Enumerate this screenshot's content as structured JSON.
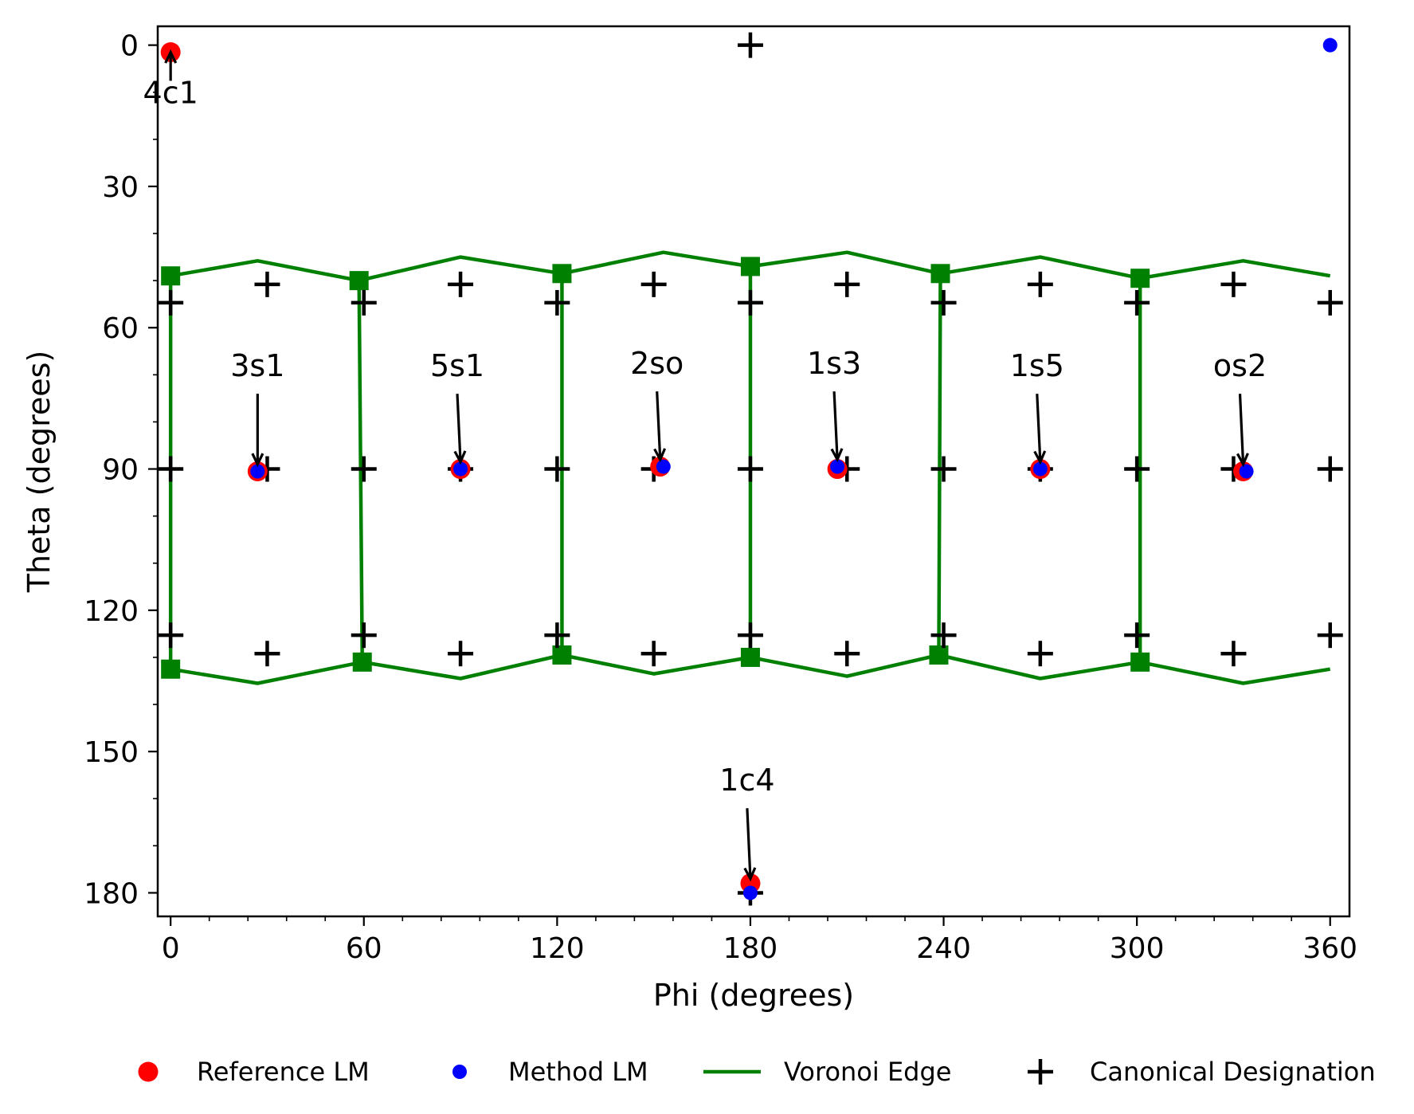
{
  "chart_data": {
    "type": "scatter",
    "xlabel": "Phi (degrees)",
    "ylabel": "Theta (degrees)",
    "xlim": [
      -4,
      366
    ],
    "ylim": [
      185,
      -4
    ],
    "y_inverted": true,
    "xticks": [
      0,
      60,
      120,
      180,
      240,
      300,
      360
    ],
    "yticks": [
      0,
      30,
      60,
      90,
      120,
      150,
      180
    ],
    "grid": false,
    "legend_placement": "bottom",
    "colors": {
      "reference": "#ff0000",
      "method": "#0000ff",
      "voronoi": "#008000",
      "canonical": "#000000"
    },
    "legend": [
      {
        "key": "reference",
        "label": "Reference LM"
      },
      {
        "key": "method",
        "label": "Method LM"
      },
      {
        "key": "voronoi",
        "label": "Voronoi Edge"
      },
      {
        "key": "canonical",
        "label": "Canonical Designation"
      }
    ],
    "series": [
      {
        "name": "Reference LM",
        "points": [
          [
            0,
            1.5
          ],
          [
            27,
            90.5
          ],
          [
            90,
            90
          ],
          [
            152,
            89.5
          ],
          [
            207,
            90
          ],
          [
            270,
            90
          ],
          [
            333,
            90.5
          ],
          [
            180,
            178
          ]
        ]
      },
      {
        "name": "Method LM",
        "points": [
          [
            360,
            0
          ],
          [
            27,
            90.5
          ],
          [
            90,
            90
          ],
          [
            153,
            89.5
          ],
          [
            207,
            89.5
          ],
          [
            270,
            90
          ],
          [
            334,
            90.5
          ],
          [
            180,
            180
          ]
        ]
      },
      {
        "name": "Canonical Designation",
        "points": [
          [
            180,
            0
          ],
          [
            30,
            50.8
          ],
          [
            90,
            50.8
          ],
          [
            150,
            50.8
          ],
          [
            210,
            50.8
          ],
          [
            270,
            50.8
          ],
          [
            330,
            50.8
          ],
          [
            0,
            54.7
          ],
          [
            60,
            54.7
          ],
          [
            120,
            54.7
          ],
          [
            180,
            54.7
          ],
          [
            240,
            54.7
          ],
          [
            300,
            54.7
          ],
          [
            360,
            54.7
          ],
          [
            0,
            90
          ],
          [
            60,
            90
          ],
          [
            120,
            90
          ],
          [
            180,
            90
          ],
          [
            240,
            90
          ],
          [
            300,
            90
          ],
          [
            360,
            90
          ],
          [
            30,
            90
          ],
          [
            90,
            90
          ],
          [
            150,
            90
          ],
          [
            210,
            90
          ],
          [
            270,
            90
          ],
          [
            330,
            90
          ],
          [
            0,
            125.3
          ],
          [
            60,
            125.3
          ],
          [
            120,
            125.3
          ],
          [
            180,
            125.3
          ],
          [
            240,
            125.3
          ],
          [
            300,
            125.3
          ],
          [
            360,
            125.3
          ],
          [
            30,
            129.2
          ],
          [
            90,
            129.2
          ],
          [
            150,
            129.2
          ],
          [
            210,
            129.2
          ],
          [
            270,
            129.2
          ],
          [
            330,
            129.2
          ],
          [
            180,
            180
          ]
        ]
      },
      {
        "name": "Voronoi Edge",
        "vertices_top": [
          [
            0,
            49
          ],
          [
            58.5,
            50
          ],
          [
            121.5,
            48.5
          ],
          [
            180,
            47
          ],
          [
            239,
            48.5
          ],
          [
            301,
            49.5
          ]
        ],
        "vertices_bottom": [
          [
            0,
            132.5
          ],
          [
            59.5,
            131
          ],
          [
            121.5,
            129.5
          ],
          [
            180,
            130
          ],
          [
            238.5,
            129.5
          ],
          [
            301,
            131
          ]
        ],
        "arc_top": [
          [
            0,
            49
          ],
          [
            27,
            45.8
          ],
          [
            58.5,
            50
          ],
          [
            90,
            45
          ],
          [
            121.5,
            48.5
          ],
          [
            153,
            44
          ],
          [
            180,
            47
          ],
          [
            210,
            44
          ],
          [
            239,
            48.5
          ],
          [
            270,
            45
          ],
          [
            301,
            49.5
          ],
          [
            333,
            45.8
          ],
          [
            360,
            49
          ]
        ],
        "arc_bottom": [
          [
            0,
            132.5
          ],
          [
            27,
            135.5
          ],
          [
            59.5,
            131
          ],
          [
            90,
            134.5
          ],
          [
            121.5,
            129.5
          ],
          [
            150,
            133.5
          ],
          [
            180,
            130
          ],
          [
            210,
            134
          ],
          [
            238.5,
            129.5
          ],
          [
            270,
            134.5
          ],
          [
            301,
            131
          ],
          [
            333,
            135.5
          ],
          [
            360,
            132.5
          ]
        ]
      }
    ],
    "annotations": [
      {
        "text": "4c1",
        "point": [
          0,
          1.5
        ],
        "text_pos": [
          0,
          14
        ]
      },
      {
        "text": "3s1",
        "point": [
          27,
          89
        ],
        "text_pos": [
          27,
          72
        ]
      },
      {
        "text": "5s1",
        "point": [
          90,
          88.5
        ],
        "text_pos": [
          89,
          72
        ]
      },
      {
        "text": "2so",
        "point": [
          152,
          88
        ],
        "text_pos": [
          151,
          71.5
        ]
      },
      {
        "text": "1s3",
        "point": [
          207,
          88
        ],
        "text_pos": [
          206,
          71.5
        ]
      },
      {
        "text": "1s5",
        "point": [
          270,
          88.5
        ],
        "text_pos": [
          269,
          72
        ]
      },
      {
        "text": "os2",
        "point": [
          333,
          89
        ],
        "text_pos": [
          332,
          72
        ]
      },
      {
        "text": "1c4",
        "point": [
          180,
          177
        ],
        "text_pos": [
          179,
          160
        ]
      }
    ]
  }
}
